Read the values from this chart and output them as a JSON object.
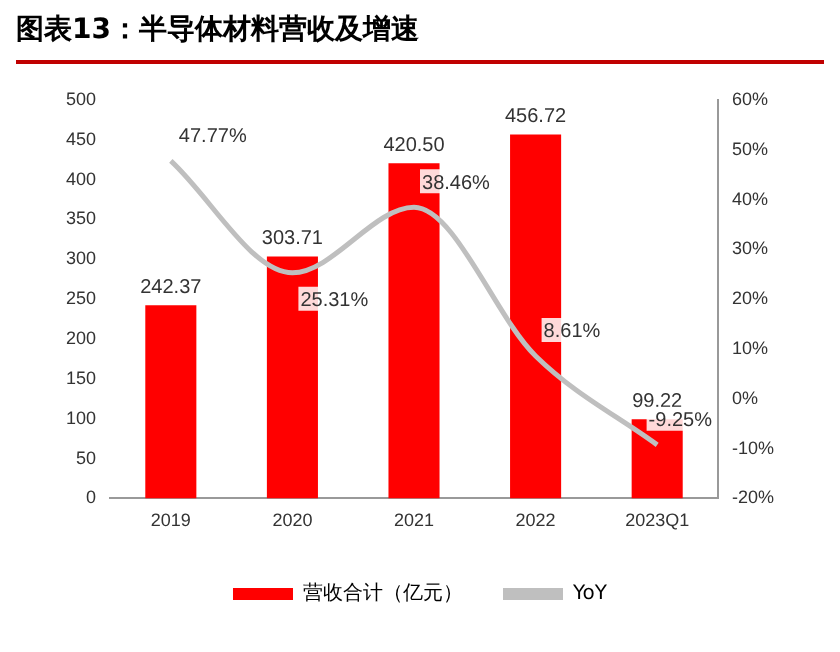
{
  "chart_data": {
    "type": "bar",
    "title": "图表13：半导体材料营收及增速",
    "categories": [
      "2019",
      "2020",
      "2021",
      "2022",
      "2023Q1"
    ],
    "series": [
      {
        "name": "营收合计（亿元）",
        "color": "#ff0000",
        "values": [
          242.37,
          303.71,
          420.5,
          456.72,
          99.22
        ],
        "value_labels": [
          "242.37",
          "303.71",
          "420.50",
          "456.72",
          "99.22"
        ]
      },
      {
        "type": "line",
        "name": "YoY",
        "color": "#bfbfbf",
        "axis": "y2",
        "values": [
          47.77,
          25.31,
          38.46,
          8.61,
          -9.25
        ],
        "value_labels": [
          "47.77%",
          "25.31%",
          "38.46%",
          "8.61%",
          "-9.25%"
        ]
      }
    ],
    "ylim": [
      0,
      500
    ],
    "yticks": [
      0,
      50,
      100,
      150,
      200,
      250,
      300,
      350,
      400,
      450,
      500
    ],
    "y2lim": [
      -20,
      60
    ],
    "y2ticks": [
      {
        "value": -20,
        "label": "-20%"
      },
      {
        "value": -10,
        "label": "-10%"
      },
      {
        "value": 0,
        "label": "0%"
      },
      {
        "value": 10,
        "label": "10%"
      },
      {
        "value": 20,
        "label": "20%"
      },
      {
        "value": 30,
        "label": "30%"
      },
      {
        "value": 40,
        "label": "40%"
      },
      {
        "value": 50,
        "label": "50%"
      },
      {
        "value": 60,
        "label": "60%"
      }
    ],
    "legend": "bottom",
    "marker": "none",
    "grid": false
  }
}
